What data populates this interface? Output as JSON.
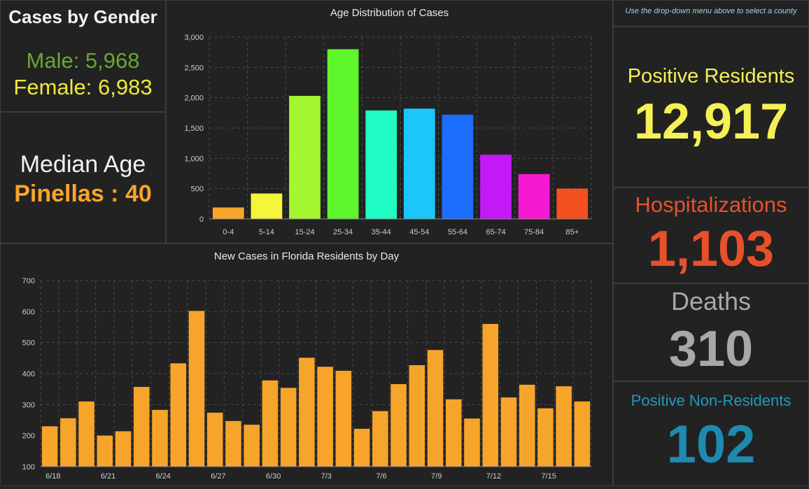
{
  "gender": {
    "title": "Cases by Gender",
    "male": "Male: 5,968",
    "female": "Female: 6,983"
  },
  "median": {
    "label": "Median Age",
    "value": "Pinellas : 40"
  },
  "hint": "Use the drop-down menu above to select a county",
  "stats": {
    "positive_residents_label": "Positive Residents",
    "positive_residents_value": "12,917",
    "hospitalizations_label": "Hospitalizations",
    "hospitalizations_value": "1,103",
    "deaths_label": "Deaths",
    "deaths_value": "310",
    "non_residents_label": "Positive Non-Residents",
    "non_residents_value": "102"
  },
  "colors": {
    "age_bars": [
      "#f7a52a",
      "#f5f53a",
      "#a4f532",
      "#5ef52a",
      "#1efcc4",
      "#1ac6fa",
      "#1a6efa",
      "#c21af5",
      "#f51ad2",
      "#f55020"
    ],
    "day_bars": "#f7a52a",
    "grid": "#4a4a4a",
    "axis_text": "#cccccc"
  },
  "chart_data": [
    {
      "type": "bar",
      "title": "Age Distribution of Cases",
      "categories": [
        "0-4",
        "5-14",
        "15-24",
        "25-34",
        "35-44",
        "45-54",
        "55-64",
        "65-74",
        "75-84",
        "85+"
      ],
      "values": [
        190,
        420,
        2030,
        2800,
        1790,
        1820,
        1720,
        1060,
        740,
        500
      ],
      "ylim": [
        0,
        3000
      ],
      "yticks": [
        "0",
        "500",
        "1,000",
        "1,500",
        "2,000",
        "2,500",
        "3,000"
      ],
      "ytick_values": [
        0,
        500,
        1000,
        1500,
        2000,
        2500,
        3000
      ],
      "grid": true,
      "legend": false
    },
    {
      "type": "bar",
      "title": "New Cases in Florida Residents by Day",
      "values": [
        230,
        256,
        310,
        200,
        214,
        357,
        283,
        433,
        602,
        274,
        247,
        235,
        378,
        354,
        451,
        422,
        409,
        222,
        279,
        366,
        427,
        476,
        317,
        255,
        560,
        323,
        364,
        288,
        359,
        310
      ],
      "x_tick_labels": [
        {
          "index": 0,
          "label": "6/18"
        },
        {
          "index": 3,
          "label": "6/21"
        },
        {
          "index": 6,
          "label": "6/24"
        },
        {
          "index": 9,
          "label": "6/27"
        },
        {
          "index": 12,
          "label": "6/30"
        },
        {
          "index": 15,
          "label": "7/3"
        },
        {
          "index": 18,
          "label": "7/6"
        },
        {
          "index": 21,
          "label": "7/9"
        },
        {
          "index": 24,
          "label": "7/12"
        },
        {
          "index": 27,
          "label": "7/15"
        }
      ],
      "ylim": [
        100,
        700
      ],
      "ytick_values": [
        100,
        200,
        300,
        400,
        500,
        600,
        700
      ],
      "yticks": [
        "100",
        "200",
        "300",
        "400",
        "500",
        "600",
        "700"
      ],
      "grid": true,
      "legend": false
    }
  ]
}
